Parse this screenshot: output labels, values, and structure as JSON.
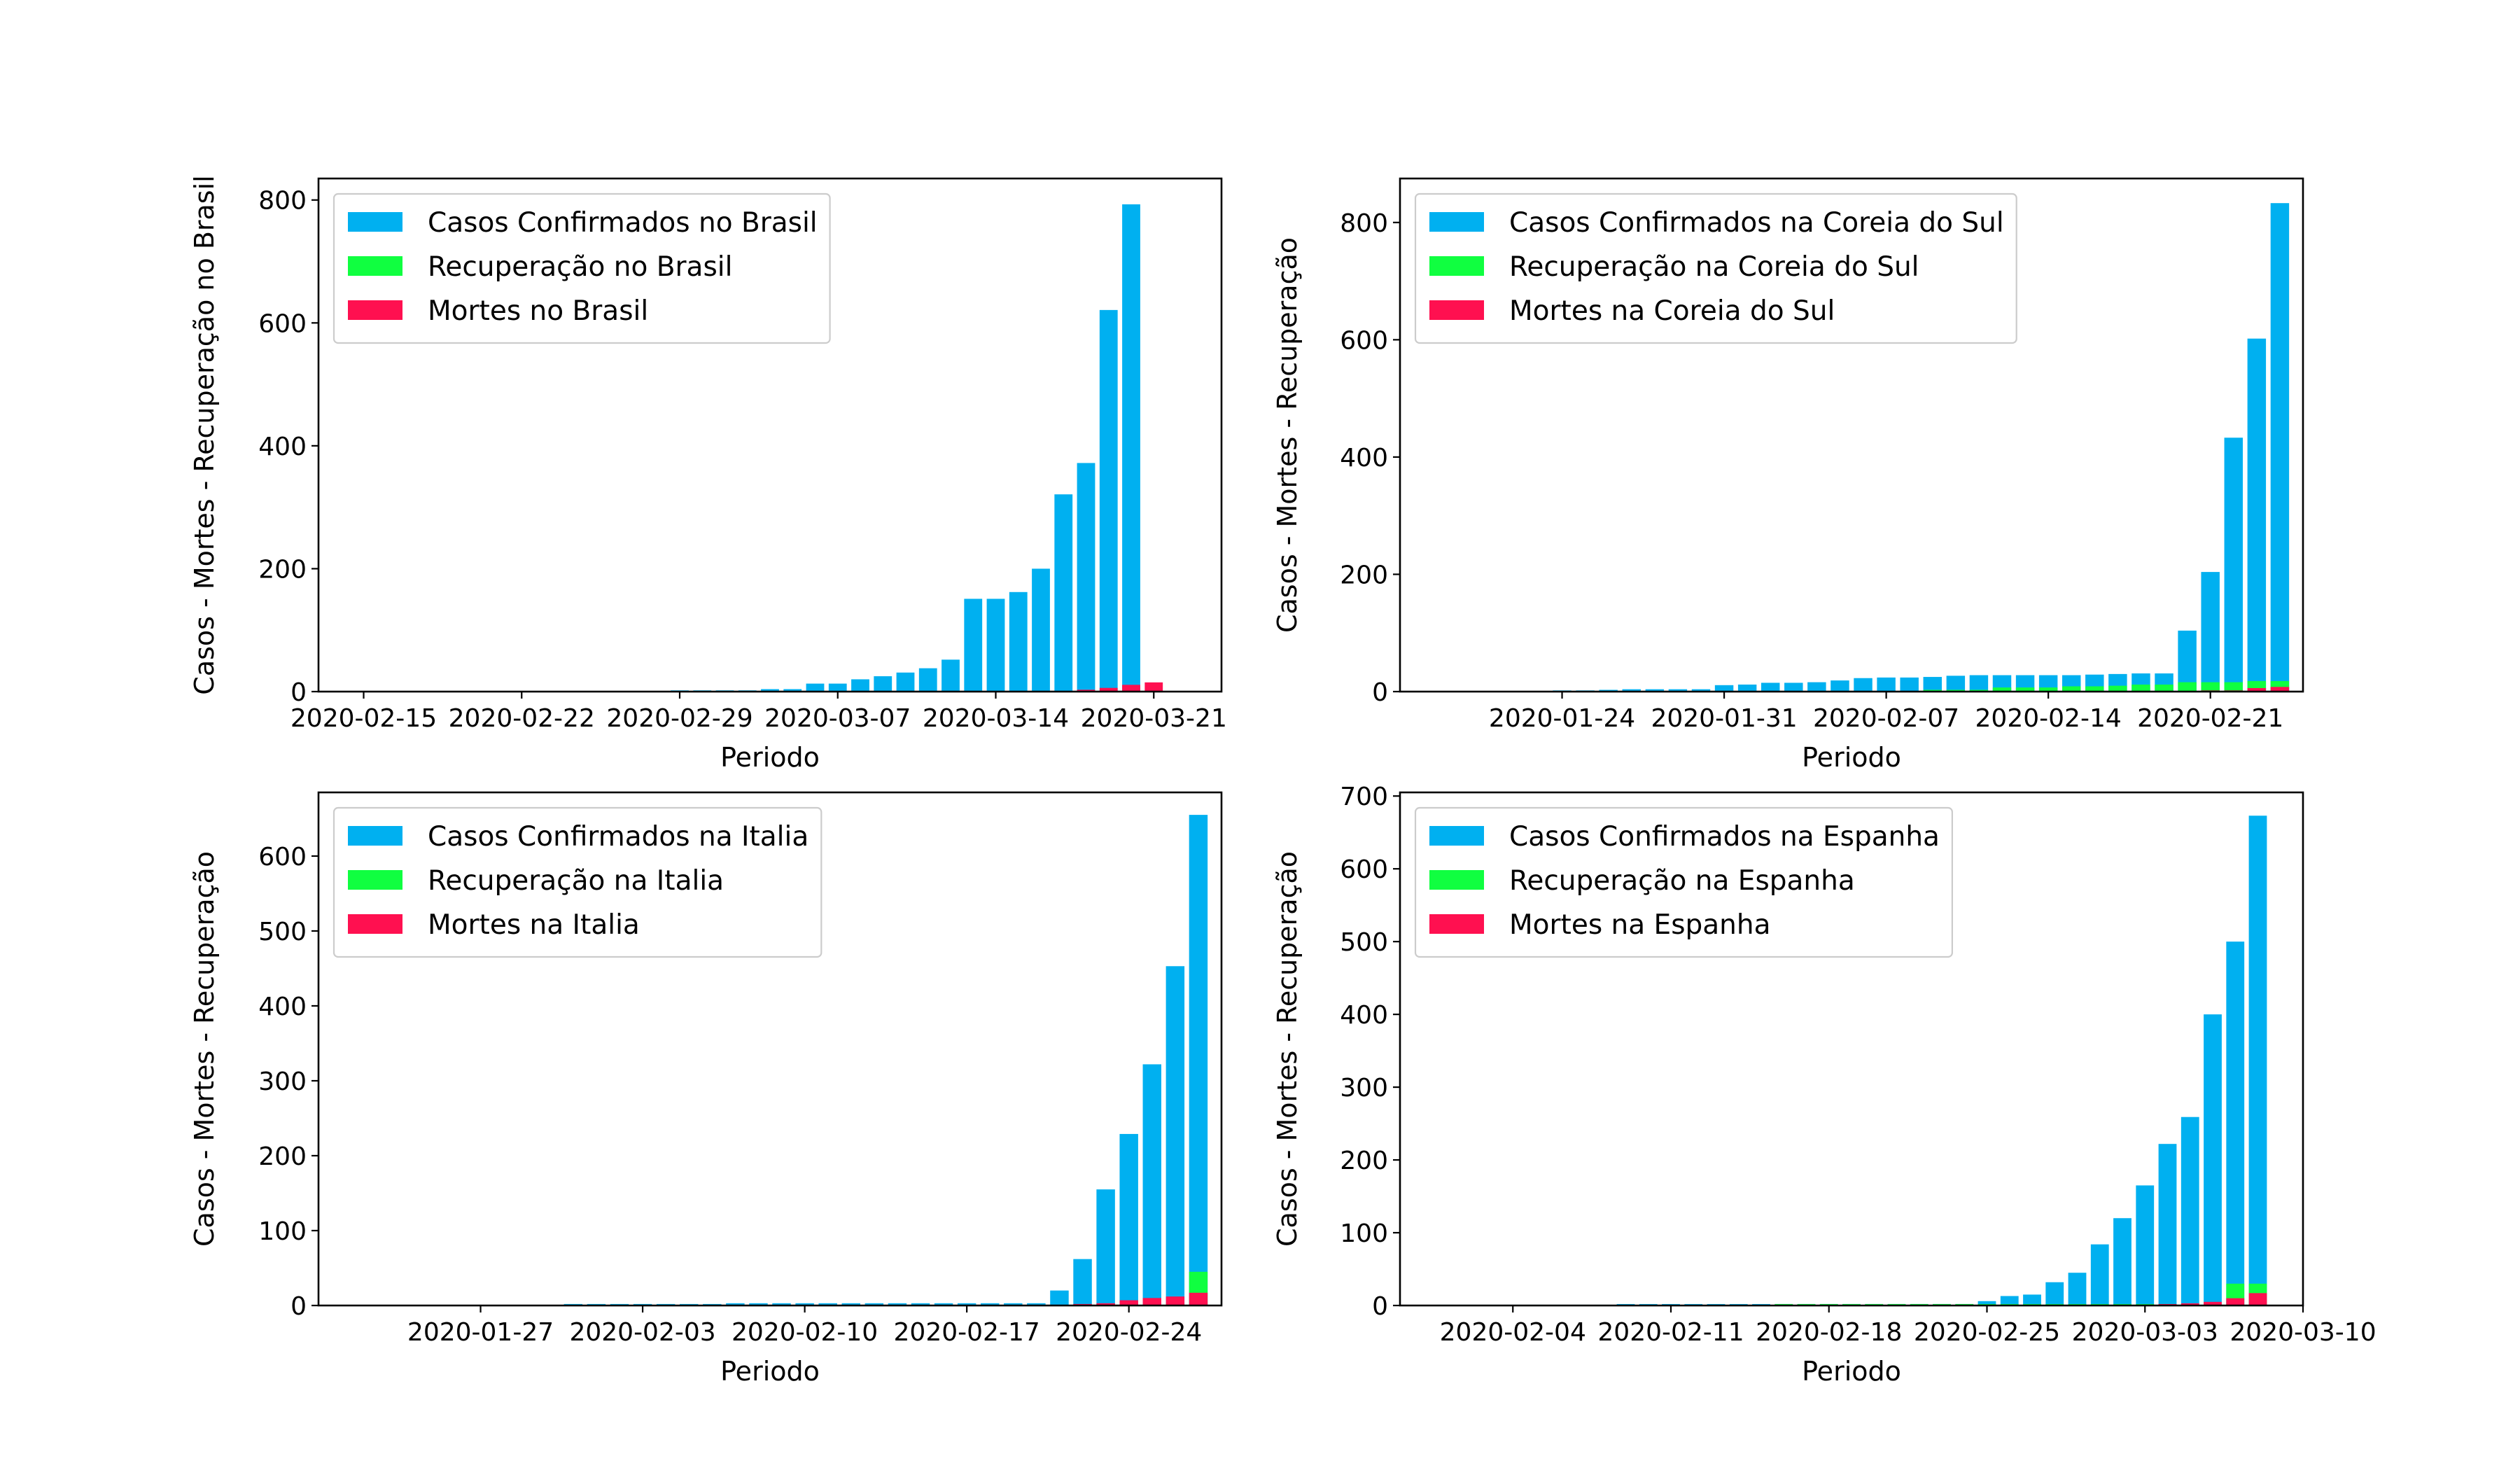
{
  "colors": {
    "confirmed": "#00b0f0",
    "recovered": "#10ff40",
    "deaths": "#ff1050"
  },
  "chart_data": [
    {
      "type": "bar",
      "xlabel": "Periodo",
      "ylabel": "Casos - Mortes - Recuperação no Brasil",
      "xlim": [
        "2020-02-13",
        "2020-03-24"
      ],
      "ylim": [
        0,
        835
      ],
      "yticks": [
        0,
        200,
        400,
        600,
        800
      ],
      "xticks": [
        "2020-02-15",
        "2020-02-22",
        "2020-02-29",
        "2020-03-07",
        "2020-03-14",
        "2020-03-21"
      ],
      "legend_position": "top-left",
      "x": [
        "2020-02-26",
        "2020-02-27",
        "2020-02-28",
        "2020-02-29",
        "2020-03-01",
        "2020-03-02",
        "2020-03-03",
        "2020-03-04",
        "2020-03-05",
        "2020-03-06",
        "2020-03-07",
        "2020-03-08",
        "2020-03-09",
        "2020-03-10",
        "2020-03-11",
        "2020-03-12",
        "2020-03-13",
        "2020-03-14",
        "2020-03-15",
        "2020-03-16",
        "2020-03-17",
        "2020-03-18",
        "2020-03-19",
        "2020-03-20",
        "2020-03-21"
      ],
      "series": [
        {
          "name": "Casos Confirmados no Brasil",
          "color_key": "confirmed",
          "values": [
            1,
            1,
            1,
            2,
            2,
            2,
            2,
            4,
            4,
            13,
            13,
            20,
            25,
            31,
            38,
            52,
            151,
            151,
            162,
            200,
            321,
            372,
            621,
            793,
            null
          ]
        },
        {
          "name": "Recuperação no Brasil",
          "color_key": "recovered",
          "values": [
            0,
            0,
            0,
            0,
            0,
            0,
            0,
            0,
            0,
            0,
            0,
            0,
            0,
            0,
            0,
            0,
            0,
            0,
            0,
            0,
            0,
            0,
            0,
            0,
            null
          ]
        },
        {
          "name": "Mortes no Brasil",
          "color_key": "deaths",
          "values": [
            0,
            0,
            0,
            0,
            0,
            0,
            0,
            0,
            0,
            0,
            0,
            0,
            0,
            0,
            0,
            0,
            0,
            0,
            0,
            0,
            1,
            3,
            6,
            11,
            15
          ]
        }
      ]
    },
    {
      "type": "bar",
      "xlabel": "Periodo",
      "ylabel": "Casos - Mortes - Recuperação",
      "xlim": [
        "2020-01-17",
        "2020-02-25"
      ],
      "ylim": [
        0,
        875
      ],
      "yticks": [
        0,
        200,
        400,
        600,
        800
      ],
      "xticks": [
        "2020-01-24",
        "2020-01-31",
        "2020-02-07",
        "2020-02-14",
        "2020-02-21"
      ],
      "legend_position": "top-left",
      "x": [
        "2020-01-22",
        "2020-01-23",
        "2020-01-24",
        "2020-01-25",
        "2020-01-26",
        "2020-01-27",
        "2020-01-28",
        "2020-01-29",
        "2020-01-30",
        "2020-01-31",
        "2020-02-01",
        "2020-02-02",
        "2020-02-03",
        "2020-02-04",
        "2020-02-05",
        "2020-02-06",
        "2020-02-07",
        "2020-02-08",
        "2020-02-09",
        "2020-02-10",
        "2020-02-11",
        "2020-02-12",
        "2020-02-13",
        "2020-02-14",
        "2020-02-15",
        "2020-02-16",
        "2020-02-17",
        "2020-02-18",
        "2020-02-19",
        "2020-02-20",
        "2020-02-21",
        "2020-02-22",
        "2020-02-23",
        "2020-02-24"
      ],
      "series": [
        {
          "name": "Casos Confirmados na Coreia do Sul",
          "color_key": "confirmed",
          "values": [
            1,
            1,
            2,
            2,
            3,
            4,
            4,
            4,
            4,
            11,
            12,
            15,
            15,
            16,
            19,
            23,
            24,
            24,
            25,
            27,
            28,
            28,
            28,
            28,
            28,
            29,
            30,
            31,
            31,
            104,
            204,
            433,
            602,
            833
          ]
        },
        {
          "name": "Recuperação na Coreia do Sul",
          "color_key": "recovered",
          "values": [
            0,
            0,
            0,
            0,
            0,
            0,
            0,
            0,
            0,
            0,
            0,
            0,
            0,
            0,
            0,
            0,
            1,
            1,
            3,
            3,
            3,
            7,
            7,
            7,
            9,
            9,
            10,
            12,
            12,
            16,
            16,
            16,
            18,
            18
          ]
        },
        {
          "name": "Mortes na Coreia do Sul",
          "color_key": "deaths",
          "values": [
            0,
            0,
            0,
            0,
            0,
            0,
            0,
            0,
            0,
            0,
            0,
            0,
            0,
            0,
            0,
            0,
            0,
            0,
            0,
            0,
            0,
            0,
            0,
            0,
            0,
            0,
            0,
            0,
            0,
            1,
            2,
            2,
            6,
            8
          ]
        }
      ]
    },
    {
      "type": "bar",
      "xlabel": "Periodo",
      "ylabel": "Casos - Mortes - Recuperação",
      "xlim": [
        "2020-01-20",
        "2020-02-28"
      ],
      "ylim": [
        0,
        685
      ],
      "yticks": [
        0,
        100,
        200,
        300,
        400,
        500,
        600
      ],
      "xticks": [
        "2020-01-27",
        "2020-02-03",
        "2020-02-10",
        "2020-02-17",
        "2020-02-24"
      ],
      "legend_position": "top-left",
      "x": [
        "2020-01-31",
        "2020-02-01",
        "2020-02-02",
        "2020-02-03",
        "2020-02-04",
        "2020-02-05",
        "2020-02-06",
        "2020-02-07",
        "2020-02-08",
        "2020-02-09",
        "2020-02-10",
        "2020-02-11",
        "2020-02-12",
        "2020-02-13",
        "2020-02-14",
        "2020-02-15",
        "2020-02-16",
        "2020-02-17",
        "2020-02-18",
        "2020-02-19",
        "2020-02-20",
        "2020-02-21",
        "2020-02-22",
        "2020-02-23",
        "2020-02-24",
        "2020-02-25",
        "2020-02-26",
        "2020-02-27"
      ],
      "series": [
        {
          "name": "Casos Confirmados na Italia",
          "color_key": "confirmed",
          "values": [
            2,
            2,
            2,
            2,
            2,
            2,
            2,
            3,
            3,
            3,
            3,
            3,
            3,
            3,
            3,
            3,
            3,
            3,
            3,
            3,
            3,
            20,
            62,
            155,
            229,
            322,
            453,
            655
          ]
        },
        {
          "name": "Recuperação na Italia",
          "color_key": "recovered",
          "values": [
            0,
            0,
            0,
            0,
            0,
            0,
            0,
            0,
            0,
            0,
            0,
            0,
            0,
            0,
            0,
            0,
            0,
            0,
            0,
            0,
            0,
            0,
            1,
            2,
            1,
            1,
            3,
            45
          ]
        },
        {
          "name": "Mortes na Italia",
          "color_key": "deaths",
          "values": [
            0,
            0,
            0,
            0,
            0,
            0,
            0,
            0,
            0,
            0,
            0,
            0,
            0,
            0,
            0,
            0,
            0,
            0,
            0,
            0,
            0,
            1,
            2,
            3,
            7,
            10,
            12,
            17
          ]
        }
      ]
    },
    {
      "type": "bar",
      "xlabel": "Periodo",
      "ylabel": "Casos - Mortes - Recuperação",
      "xlim": [
        "2020-01-30",
        "2020-03-10"
      ],
      "ylim": [
        0,
        705
      ],
      "yticks": [
        0,
        100,
        200,
        300,
        400,
        500,
        600,
        700
      ],
      "xticks": [
        "2020-02-04",
        "2020-02-11",
        "2020-02-18",
        "2020-02-25",
        "2020-03-03",
        "2020-03-10"
      ],
      "legend_position": "top-left",
      "x": [
        "2020-02-01",
        "2020-02-02",
        "2020-02-03",
        "2020-02-04",
        "2020-02-05",
        "2020-02-06",
        "2020-02-07",
        "2020-02-08",
        "2020-02-09",
        "2020-02-10",
        "2020-02-11",
        "2020-02-12",
        "2020-02-13",
        "2020-02-14",
        "2020-02-15",
        "2020-02-16",
        "2020-02-17",
        "2020-02-18",
        "2020-02-19",
        "2020-02-20",
        "2020-02-21",
        "2020-02-22",
        "2020-02-23",
        "2020-02-24",
        "2020-02-25",
        "2020-02-26",
        "2020-02-27",
        "2020-02-28",
        "2020-02-29",
        "2020-03-01",
        "2020-03-02",
        "2020-03-03",
        "2020-03-04",
        "2020-03-05",
        "2020-03-06",
        "2020-03-07",
        "2020-03-08"
      ],
      "series": [
        {
          "name": "Casos Confirmados na Espanha",
          "color_key": "confirmed",
          "values": [
            1,
            1,
            1,
            1,
            1,
            1,
            1,
            1,
            2,
            2,
            2,
            2,
            2,
            2,
            2,
            2,
            2,
            2,
            2,
            2,
            2,
            2,
            2,
            2,
            6,
            13,
            15,
            32,
            45,
            84,
            120,
            165,
            222,
            259,
            400,
            500,
            673
          ]
        },
        {
          "name": "Recuperação na Espanha",
          "color_key": "recovered",
          "values": [
            0,
            0,
            0,
            0,
            0,
            0,
            0,
            0,
            0,
            0,
            0,
            0,
            0,
            0,
            0,
            2,
            2,
            2,
            2,
            2,
            2,
            2,
            2,
            2,
            2,
            2,
            2,
            2,
            2,
            2,
            2,
            2,
            2,
            2,
            2,
            30,
            30
          ]
        },
        {
          "name": "Mortes na Espanha",
          "color_key": "deaths",
          "values": [
            0,
            0,
            0,
            0,
            0,
            0,
            0,
            0,
            0,
            0,
            0,
            0,
            0,
            0,
            0,
            0,
            0,
            0,
            0,
            0,
            0,
            0,
            0,
            0,
            0,
            0,
            0,
            0,
            0,
            0,
            0,
            1,
            2,
            3,
            5,
            10,
            17
          ]
        }
      ]
    }
  ]
}
